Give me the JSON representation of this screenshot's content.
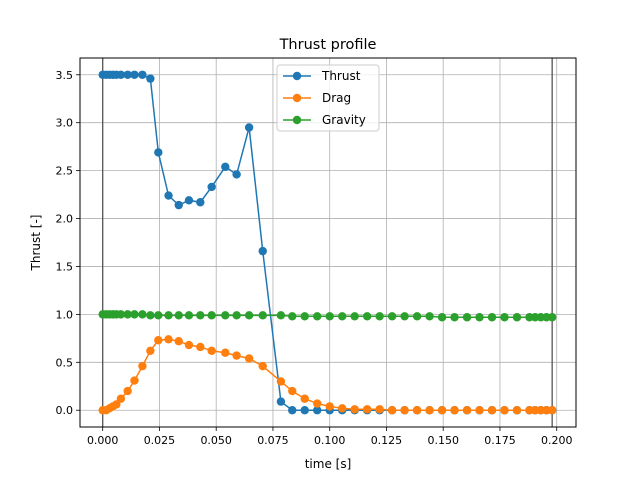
{
  "chart_data": {
    "type": "line",
    "title": "Thrust profile",
    "xlabel": "time [s]",
    "ylabel": "Thrust [-]",
    "xlim": [
      -0.01,
      0.2085
    ],
    "ylim": [
      -0.175,
      3.675
    ],
    "xticks": [
      0.0,
      0.025,
      0.05,
      0.075,
      0.1,
      0.125,
      0.15,
      0.175,
      0.2
    ],
    "xtick_labels": [
      "0.000",
      "0.025",
      "0.050",
      "0.075",
      "0.100",
      "0.125",
      "0.150",
      "0.175",
      "0.200"
    ],
    "yticks": [
      0.0,
      0.5,
      1.0,
      1.5,
      2.0,
      2.5,
      3.0,
      3.5
    ],
    "ytick_labels": [
      "0.0",
      "0.5",
      "1.0",
      "1.5",
      "2.0",
      "2.5",
      "3.0",
      "3.5"
    ],
    "grid": true,
    "legend_position": "upper-center",
    "vlines": [
      0.0,
      0.198
    ],
    "series": [
      {
        "name": "Thrust",
        "color": "#1f77b4",
        "x": [
          0.0,
          0.0015,
          0.003,
          0.0045,
          0.006,
          0.008,
          0.011,
          0.014,
          0.0175,
          0.021,
          0.0245,
          0.029,
          0.0335,
          0.038,
          0.043,
          0.048,
          0.054,
          0.059,
          0.0645,
          0.0705,
          0.0785,
          0.0835,
          0.089,
          0.0945,
          0.1,
          0.1055,
          0.111,
          0.1165,
          0.122,
          0.1275,
          0.133,
          0.1385,
          0.144,
          0.1495,
          0.155,
          0.1605,
          0.166,
          0.1715,
          0.177,
          0.1825,
          0.188,
          0.1905,
          0.193,
          0.1955,
          0.198
        ],
        "y": [
          3.5,
          3.5,
          3.5,
          3.5,
          3.5,
          3.5,
          3.5,
          3.5,
          3.5,
          3.46,
          2.69,
          2.24,
          2.14,
          2.19,
          2.17,
          2.33,
          2.54,
          2.46,
          2.95,
          1.66,
          0.09,
          0.0,
          0.0,
          0.0,
          0.0,
          0.0,
          0.0,
          0.0,
          0.0,
          0.0,
          0.0,
          0.0,
          0.0,
          0.0,
          0.0,
          0.0,
          0.0,
          0.0,
          0.0,
          0.0,
          0.0,
          0.0,
          0.0,
          0.0,
          0.0
        ]
      },
      {
        "name": "Drag",
        "color": "#ff7f0e",
        "x": [
          0.0,
          0.0015,
          0.003,
          0.0045,
          0.006,
          0.008,
          0.011,
          0.014,
          0.0175,
          0.021,
          0.0245,
          0.029,
          0.0335,
          0.038,
          0.043,
          0.048,
          0.054,
          0.059,
          0.0645,
          0.0705,
          0.0785,
          0.0835,
          0.089,
          0.0945,
          0.1,
          0.1055,
          0.111,
          0.1165,
          0.122,
          0.1275,
          0.133,
          0.1385,
          0.144,
          0.1495,
          0.155,
          0.1605,
          0.166,
          0.1715,
          0.177,
          0.1825,
          0.188,
          0.1905,
          0.193,
          0.1955,
          0.198
        ],
        "y": [
          0.0,
          0.0,
          0.02,
          0.04,
          0.06,
          0.12,
          0.2,
          0.31,
          0.46,
          0.62,
          0.73,
          0.74,
          0.72,
          0.68,
          0.66,
          0.62,
          0.6,
          0.57,
          0.54,
          0.46,
          0.3,
          0.2,
          0.12,
          0.07,
          0.04,
          0.02,
          0.01,
          0.01,
          0.01,
          0.0,
          0.0,
          0.0,
          0.0,
          0.0,
          0.0,
          0.0,
          0.0,
          0.0,
          0.0,
          0.0,
          0.0,
          0.0,
          0.0,
          0.0,
          0.0
        ]
      },
      {
        "name": "Gravity",
        "color": "#2ca02c",
        "x": [
          0.0,
          0.0015,
          0.003,
          0.0045,
          0.006,
          0.008,
          0.011,
          0.014,
          0.0175,
          0.021,
          0.0245,
          0.029,
          0.0335,
          0.038,
          0.043,
          0.048,
          0.054,
          0.059,
          0.0645,
          0.0705,
          0.0785,
          0.0835,
          0.089,
          0.0945,
          0.1,
          0.1055,
          0.111,
          0.1165,
          0.122,
          0.1275,
          0.133,
          0.1385,
          0.144,
          0.1495,
          0.155,
          0.1605,
          0.166,
          0.1715,
          0.177,
          0.1825,
          0.188,
          0.1905,
          0.193,
          0.1955,
          0.198
        ],
        "y": [
          1.0,
          1.0,
          1.0,
          1.0,
          1.0,
          1.0,
          1.0,
          1.0,
          1.0,
          0.99,
          0.99,
          0.99,
          0.99,
          0.99,
          0.99,
          0.99,
          0.99,
          0.99,
          0.99,
          0.99,
          0.99,
          0.98,
          0.98,
          0.98,
          0.98,
          0.98,
          0.98,
          0.98,
          0.98,
          0.98,
          0.98,
          0.98,
          0.98,
          0.97,
          0.97,
          0.97,
          0.97,
          0.97,
          0.97,
          0.97,
          0.97,
          0.97,
          0.97,
          0.97,
          0.97
        ]
      }
    ]
  }
}
